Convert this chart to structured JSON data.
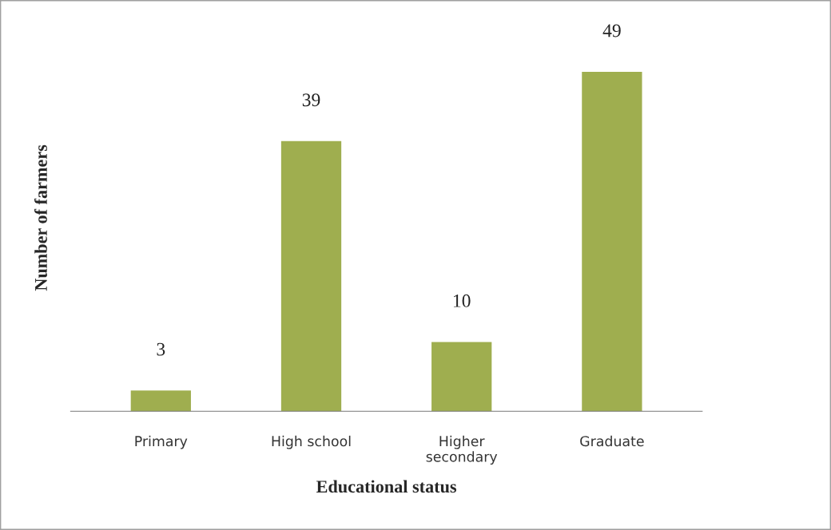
{
  "chart_data": {
    "type": "bar",
    "xlabel": "Educational status",
    "ylabel": "Number of farmers",
    "categories": [
      "Primary",
      "High school",
      "Higher\nsecondary",
      "Graduate"
    ],
    "values": [
      3,
      39,
      10,
      49
    ],
    "color": "#9fae4f",
    "data_labels": true,
    "grid": false,
    "legend": false,
    "tick_labels": "x"
  }
}
